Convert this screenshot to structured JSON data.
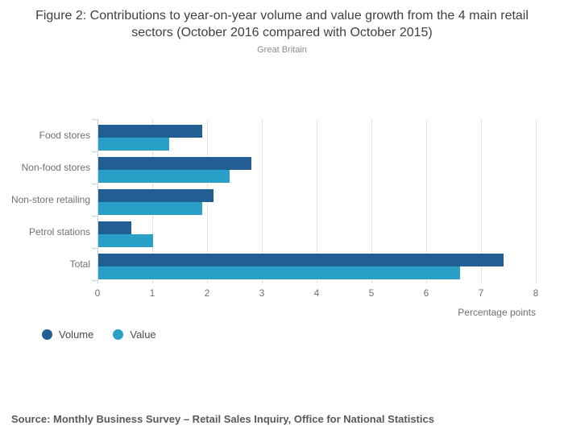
{
  "title": "Figure 2: Contributions to year-on-year volume and value growth from the 4 main retail sectors (October 2016 compared with October 2015)",
  "subtitle": "Great Britain",
  "chart_data": {
    "type": "bar",
    "orientation": "horizontal",
    "categories": [
      "Food stores",
      "Non-food stores",
      "Non-store retailing",
      "Petrol stations",
      "Total"
    ],
    "series": [
      {
        "name": "Volume",
        "color": "#235e92",
        "values": [
          1.9,
          2.8,
          2.1,
          0.6,
          7.4
        ]
      },
      {
        "name": "Value",
        "color": "#2aa0c9",
        "values": [
          1.3,
          2.4,
          1.9,
          1.0,
          6.6
        ]
      }
    ],
    "xlabel": "Percentage points",
    "xlim": [
      0,
      8
    ],
    "xticks": [
      0,
      1,
      2,
      3,
      4,
      5,
      6,
      7,
      8
    ],
    "grid": true,
    "legend_position": "bottom-left"
  },
  "source": "Source: Monthly Business Survey – Retail Sales Inquiry, Office for National Statistics"
}
